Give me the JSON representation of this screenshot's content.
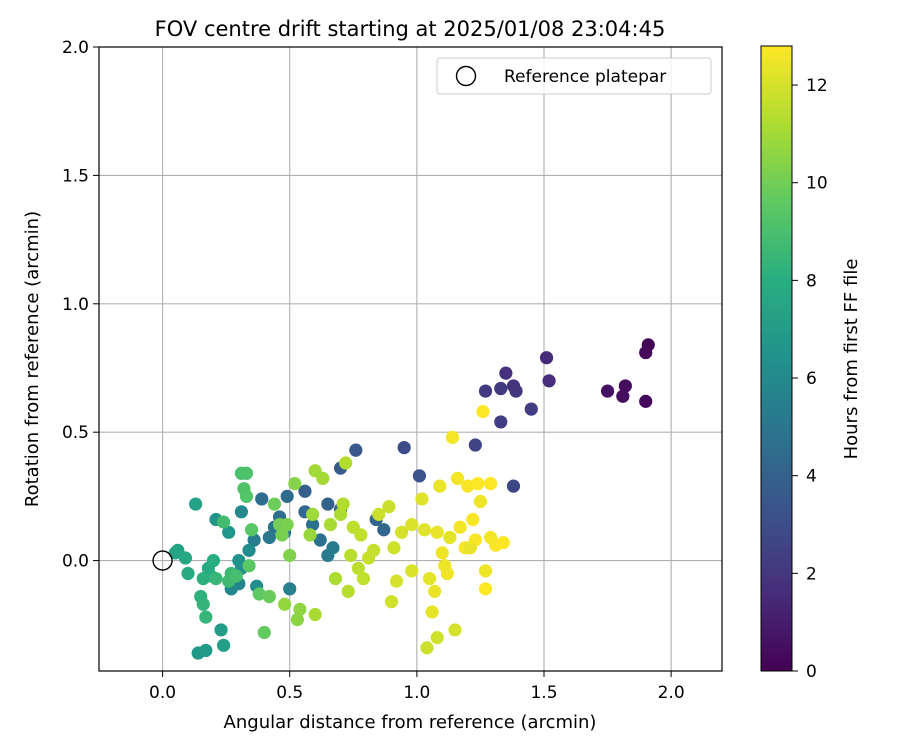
{
  "chart_data": {
    "type": "scatter",
    "title": "FOV centre drift starting at 2025/01/08 23:04:45",
    "xlabel": "Angular distance from reference (arcmin)",
    "ylabel": "Rotation from reference (arcmin)",
    "xlim": [
      -0.25,
      2.2
    ],
    "ylim": [
      -0.43,
      2.0
    ],
    "xticks": [
      0.0,
      0.5,
      1.0,
      1.5,
      2.0
    ],
    "xtick_labels": [
      "0.0",
      "0.5",
      "1.0",
      "1.5",
      "2.0"
    ],
    "yticks": [
      0.0,
      0.5,
      1.0,
      1.5,
      2.0
    ],
    "ytick_labels": [
      "0.0",
      "0.5",
      "1.0",
      "1.5",
      "2.0"
    ],
    "grid": true,
    "legend": {
      "placement": "top-right",
      "entries": [
        {
          "label": "Reference platepar",
          "marker": "open-circle"
        }
      ]
    },
    "reference_point": {
      "x": 0.0,
      "y": 0.0
    },
    "colorbar": {
      "label": "Hours from first FF file",
      "colormap": "viridis",
      "range": [
        0,
        12.8
      ],
      "ticks": [
        0,
        2,
        4,
        6,
        8,
        10,
        12
      ],
      "tick_labels": [
        "0",
        "2",
        "4",
        "6",
        "8",
        "10",
        "12"
      ]
    },
    "points": [
      [
        1.91,
        0.84,
        0.1
      ],
      [
        1.9,
        0.81,
        0.2
      ],
      [
        1.9,
        0.62,
        0.3
      ],
      [
        1.82,
        0.68,
        0.4
      ],
      [
        1.81,
        0.64,
        0.5
      ],
      [
        1.75,
        0.66,
        0.6
      ],
      [
        1.51,
        0.79,
        1.5
      ],
      [
        1.52,
        0.7,
        1.6
      ],
      [
        1.35,
        0.73,
        1.8
      ],
      [
        1.38,
        0.68,
        1.9
      ],
      [
        1.39,
        0.66,
        2.0
      ],
      [
        1.33,
        0.67,
        2.1
      ],
      [
        1.27,
        0.66,
        2.2
      ],
      [
        1.45,
        0.59,
        2.3
      ],
      [
        1.33,
        0.54,
        2.4
      ],
      [
        1.23,
        0.45,
        2.6
      ],
      [
        1.38,
        0.29,
        2.7
      ],
      [
        0.95,
        0.44,
        3.0
      ],
      [
        1.01,
        0.33,
        3.2
      ],
      [
        0.76,
        0.43,
        3.5
      ],
      [
        0.7,
        0.36,
        3.6
      ],
      [
        0.56,
        0.27,
        3.8
      ],
      [
        0.65,
        0.22,
        3.9
      ],
      [
        0.7,
        0.2,
        4.0
      ],
      [
        0.84,
        0.16,
        4.1
      ],
      [
        0.87,
        0.12,
        4.2
      ],
      [
        0.56,
        0.19,
        4.3
      ],
      [
        0.49,
        0.25,
        4.4
      ],
      [
        0.39,
        0.24,
        4.5
      ],
      [
        0.46,
        0.17,
        4.6
      ],
      [
        0.59,
        0.14,
        4.7
      ],
      [
        0.62,
        0.08,
        4.8
      ],
      [
        0.44,
        0.13,
        4.9
      ],
      [
        0.48,
        0.11,
        5.0
      ],
      [
        0.42,
        0.09,
        5.1
      ],
      [
        0.65,
        0.02,
        5.2
      ],
      [
        0.67,
        0.05,
        5.3
      ],
      [
        0.36,
        0.08,
        5.4
      ],
      [
        0.5,
        -0.11,
        5.5
      ],
      [
        0.3,
        -0.09,
        5.8
      ],
      [
        0.27,
        -0.11,
        5.9
      ],
      [
        0.31,
        0.19,
        6.0
      ],
      [
        0.34,
        0.04,
        6.1
      ],
      [
        0.37,
        -0.1,
        6.2
      ],
      [
        0.31,
        -0.03,
        6.3
      ],
      [
        0.3,
        0.0,
        6.4
      ],
      [
        0.21,
        0.16,
        6.6
      ],
      [
        0.26,
        0.11,
        6.7
      ],
      [
        0.14,
        -0.36,
        6.8
      ],
      [
        0.17,
        -0.35,
        6.9
      ],
      [
        0.23,
        -0.27,
        7.0
      ],
      [
        0.24,
        -0.33,
        7.1
      ],
      [
        0.13,
        0.22,
        7.3
      ],
      [
        0.06,
        0.04,
        7.4
      ],
      [
        0.05,
        0.03,
        7.5
      ],
      [
        0.09,
        0.01,
        7.6
      ],
      [
        0.1,
        -0.05,
        7.7
      ],
      [
        0.18,
        -0.03,
        7.8
      ],
      [
        0.19,
        -0.06,
        7.9
      ],
      [
        0.2,
        0.0,
        8.0
      ],
      [
        0.16,
        -0.07,
        8.1
      ],
      [
        0.15,
        -0.14,
        8.2
      ],
      [
        0.16,
        -0.17,
        8.3
      ],
      [
        0.17,
        -0.22,
        8.4
      ],
      [
        0.21,
        -0.07,
        8.5
      ],
      [
        0.27,
        -0.05,
        8.6
      ],
      [
        0.26,
        -0.08,
        8.7
      ],
      [
        0.24,
        0.15,
        8.8
      ],
      [
        0.29,
        -0.06,
        8.9
      ],
      [
        0.31,
        0.34,
        9.0
      ],
      [
        0.33,
        0.34,
        9.1
      ],
      [
        0.32,
        0.28,
        9.2
      ],
      [
        0.33,
        0.25,
        9.3
      ],
      [
        0.35,
        0.12,
        9.4
      ],
      [
        0.34,
        -0.02,
        9.5
      ],
      [
        0.38,
        -0.13,
        9.6
      ],
      [
        0.4,
        -0.28,
        9.7
      ],
      [
        0.42,
        -0.14,
        9.8
      ],
      [
        0.44,
        0.22,
        9.9
      ],
      [
        0.46,
        0.14,
        10.0
      ],
      [
        0.47,
        0.1,
        10.1
      ],
      [
        0.49,
        0.14,
        10.2
      ],
      [
        0.5,
        0.02,
        10.3
      ],
      [
        0.52,
        0.3,
        10.4
      ],
      [
        0.53,
        -0.23,
        10.5
      ],
      [
        0.54,
        -0.19,
        10.6
      ],
      [
        0.48,
        -0.17,
        10.7
      ],
      [
        0.58,
        0.1,
        10.8
      ],
      [
        0.59,
        0.18,
        10.9
      ],
      [
        0.6,
        0.35,
        11.0
      ],
      [
        0.63,
        0.32,
        11.0
      ],
      [
        0.6,
        -0.21,
        11.1
      ],
      [
        0.66,
        0.14,
        11.1
      ],
      [
        0.68,
        -0.07,
        11.2
      ],
      [
        0.7,
        0.18,
        11.2
      ],
      [
        0.71,
        0.22,
        11.3
      ],
      [
        0.72,
        0.38,
        11.3
      ],
      [
        0.73,
        -0.12,
        11.4
      ],
      [
        0.74,
        0.02,
        11.4
      ],
      [
        0.75,
        0.13,
        11.5
      ],
      [
        0.77,
        -0.03,
        11.5
      ],
      [
        0.78,
        0.1,
        11.6
      ],
      [
        0.79,
        -0.07,
        11.6
      ],
      [
        0.81,
        0.01,
        11.7
      ],
      [
        0.83,
        0.04,
        11.7
      ],
      [
        0.85,
        0.18,
        11.8
      ],
      [
        0.89,
        0.21,
        11.8
      ],
      [
        0.9,
        -0.16,
        11.9
      ],
      [
        0.91,
        0.05,
        11.9
      ],
      [
        0.92,
        -0.08,
        12.0
      ],
      [
        0.94,
        0.11,
        12.0
      ],
      [
        0.98,
        0.14,
        12.1
      ],
      [
        0.98,
        -0.04,
        12.1
      ],
      [
        1.02,
        0.24,
        12.2
      ],
      [
        1.03,
        0.12,
        12.2
      ],
      [
        1.05,
        -0.07,
        12.3
      ],
      [
        1.06,
        -0.2,
        12.3
      ],
      [
        1.07,
        -0.12,
        12.4
      ],
      [
        1.08,
        0.11,
        12.4
      ],
      [
        1.09,
        0.29,
        12.4
      ],
      [
        1.1,
        0.03,
        12.5
      ],
      [
        1.11,
        -0.02,
        12.5
      ],
      [
        1.12,
        -0.05,
        12.5
      ],
      [
        1.14,
        0.48,
        12.6
      ],
      [
        1.16,
        0.32,
        12.6
      ],
      [
        1.17,
        0.13,
        12.6
      ],
      [
        1.19,
        0.05,
        12.7
      ],
      [
        1.2,
        0.29,
        12.7
      ],
      [
        1.22,
        0.16,
        12.7
      ],
      [
        1.23,
        0.08,
        12.7
      ],
      [
        1.24,
        0.3,
        12.8
      ],
      [
        1.26,
        0.58,
        12.8
      ],
      [
        1.27,
        -0.11,
        12.8
      ],
      [
        1.29,
        0.3,
        12.8
      ],
      [
        1.31,
        0.06,
        12.8
      ],
      [
        1.34,
        0.07,
        12.8
      ],
      [
        1.08,
        -0.3,
        11.9
      ],
      [
        1.04,
        -0.34,
        11.8
      ],
      [
        1.15,
        -0.27,
        12.0
      ],
      [
        1.27,
        -0.04,
        12.5
      ],
      [
        1.29,
        0.09,
        12.6
      ],
      [
        1.25,
        0.23,
        12.5
      ],
      [
        1.21,
        0.05,
        12.4
      ],
      [
        1.13,
        0.09,
        12.3
      ]
    ]
  }
}
